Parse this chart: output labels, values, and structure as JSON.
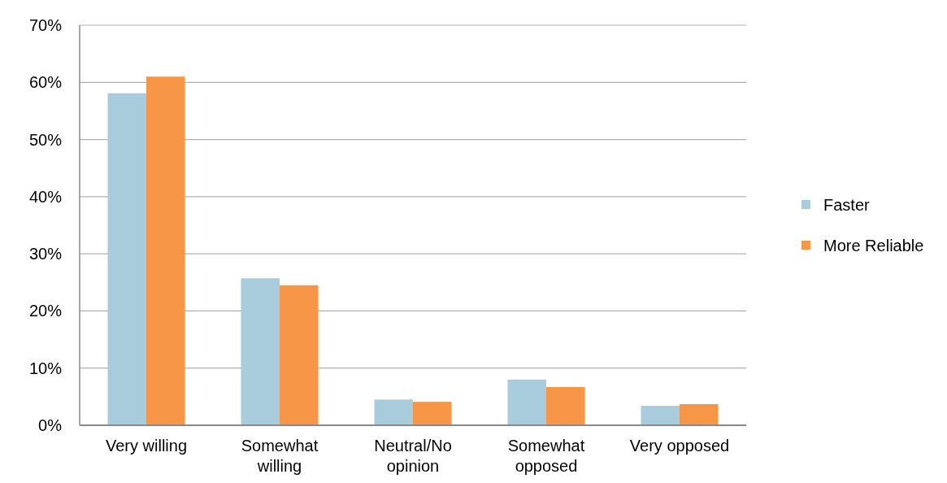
{
  "chart_data": {
    "type": "bar",
    "categories": [
      "Very willing",
      "Somewhat willing",
      "Neutral/No opinion",
      "Somewhat opposed",
      "Very opposed"
    ],
    "series": [
      {
        "name": "Faster",
        "color": "#a8ccdb",
        "values": [
          58.1,
          25.7,
          4.5,
          8.0,
          3.4
        ]
      },
      {
        "name": "More Reliable",
        "color": "#f79646",
        "values": [
          61,
          24.5,
          4.1,
          6.7,
          3.7
        ]
      }
    ],
    "ylim": [
      0,
      70
    ],
    "yticks": [
      {
        "value": 0,
        "label": "0%"
      },
      {
        "value": 10,
        "label": "10%"
      },
      {
        "value": 20,
        "label": "20%"
      },
      {
        "value": 30,
        "label": "30%"
      },
      {
        "value": 40,
        "label": "40%"
      },
      {
        "value": 50,
        "label": "50%"
      },
      {
        "value": 60,
        "label": "60%"
      },
      {
        "value": 70,
        "label": "70%"
      }
    ],
    "grid": "y",
    "legend": "right"
  }
}
